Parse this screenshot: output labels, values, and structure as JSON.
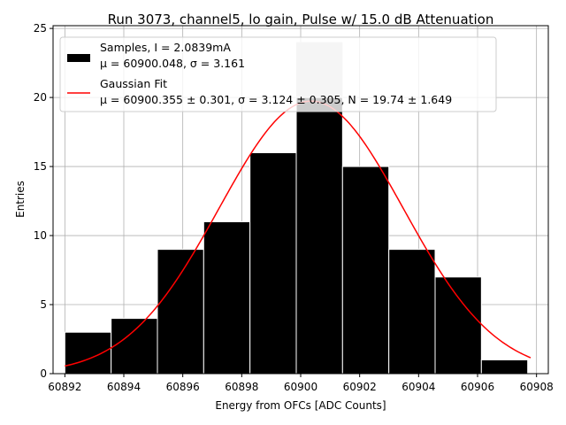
{
  "chart_data": {
    "type": "bar",
    "subtype": "histogram",
    "title": "Run 3073, channel5, lo gain, Pulse w/ 15.0 dB Attenuation",
    "xlabel": "Energy from OFCs [ADC Counts]",
    "ylabel": "Entries",
    "xlim": [
      60891.6,
      60908.4
    ],
    "ylim": [
      0,
      25.2
    ],
    "xticks": [
      60892,
      60894,
      60896,
      60898,
      60900,
      60902,
      60904,
      60906,
      60908
    ],
    "yticks": [
      0,
      5,
      10,
      15,
      20,
      25
    ],
    "grid": true,
    "legend_position": "top-left",
    "bins": [
      {
        "x0": 60892.0,
        "x1": 60893.57,
        "count": 3
      },
      {
        "x0": 60893.57,
        "x1": 60895.14,
        "count": 4
      },
      {
        "x0": 60895.14,
        "x1": 60896.71,
        "count": 9
      },
      {
        "x0": 60896.71,
        "x1": 60898.28,
        "count": 11
      },
      {
        "x0": 60898.28,
        "x1": 60899.85,
        "count": 16
      },
      {
        "x0": 60899.85,
        "x1": 60901.42,
        "count": 24
      },
      {
        "x0": 60901.42,
        "x1": 60902.99,
        "count": 15
      },
      {
        "x0": 60902.99,
        "x1": 60904.56,
        "count": 9
      },
      {
        "x0": 60904.56,
        "x1": 60906.13,
        "count": 7
      },
      {
        "x0": 60906.13,
        "x1": 60907.7,
        "count": 1
      }
    ],
    "fit": {
      "mu": 60900.355,
      "sigma": 3.124,
      "N": 19.74,
      "x_range": [
        60892.0,
        60907.8
      ]
    },
    "colors": {
      "bars": "#000000",
      "bar_edge": "#ffffff",
      "fit": "#ff0000",
      "overlay": "#cccccc",
      "grid": "#b0b0b0"
    },
    "legend": [
      {
        "label_line1": "Samples, I = 2.0839mA",
        "label_line2": "μ = 60900.048, σ = 3.161"
      },
      {
        "label_line1": "Gaussian Fit",
        "label_line2": "μ = 60900.355 ± 0.301, σ = 3.124 ± 0.305, N = 19.74 ± 1.649"
      }
    ]
  }
}
